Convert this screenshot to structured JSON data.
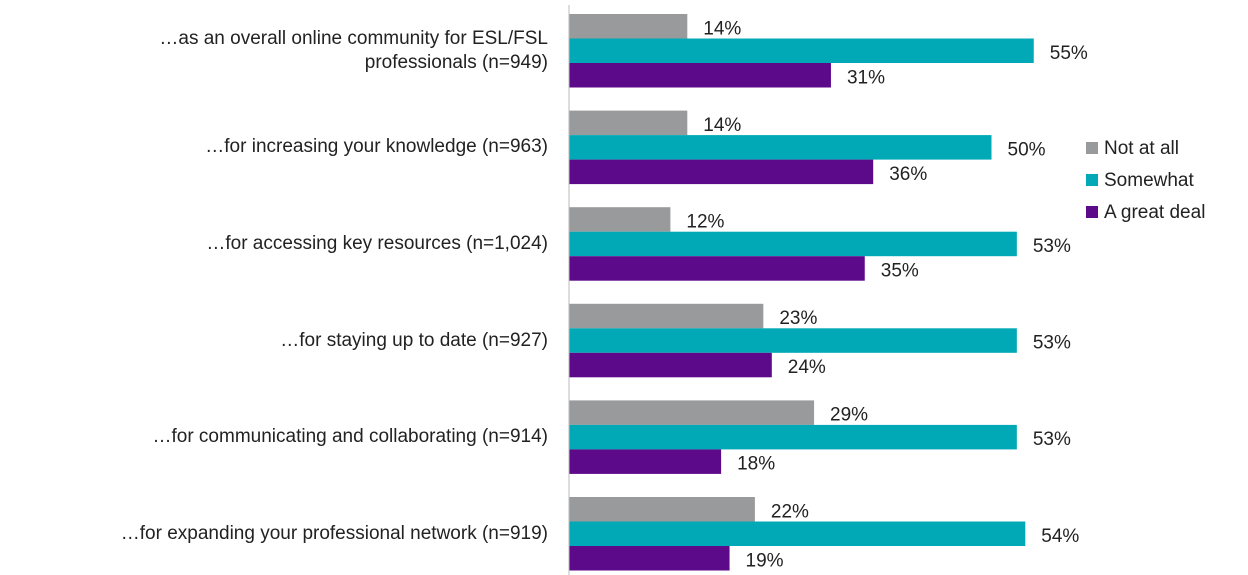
{
  "chart_data": {
    "type": "bar",
    "orientation": "horizontal",
    "categories": [
      "…as an overall online community for ESL/FSL\nprofessionals  (n=949)",
      "…for increasing your knowledge  (n=963)",
      "…for accessing key resources  (n=1,024)",
      "…for staying up to date  (n=927)",
      "…for communicating and collaborating  (n=914)",
      "…for expanding your professional network (n=919)"
    ],
    "series": [
      {
        "name": "Not at all",
        "color": "#999a9c",
        "values": [
          14,
          14,
          12,
          23,
          29,
          22
        ],
        "value_labels": [
          "14%",
          "14%",
          "12%",
          "23%",
          "29%",
          "22%"
        ]
      },
      {
        "name": "Somewhat",
        "color": "#00a9b5",
        "values": [
          55,
          50,
          53,
          53,
          53,
          54
        ],
        "value_labels": [
          "55%",
          "50%",
          "53%",
          "53%",
          "53%",
          "54%"
        ]
      },
      {
        "name": "A great deal",
        "color": "#5c0a8a",
        "values": [
          31,
          36,
          35,
          24,
          18,
          19
        ],
        "value_labels": [
          "31%",
          "36%",
          "35%",
          "24%",
          "18%",
          "19%"
        ]
      }
    ],
    "xlim": [
      0,
      60
    ],
    "legend": "right"
  }
}
